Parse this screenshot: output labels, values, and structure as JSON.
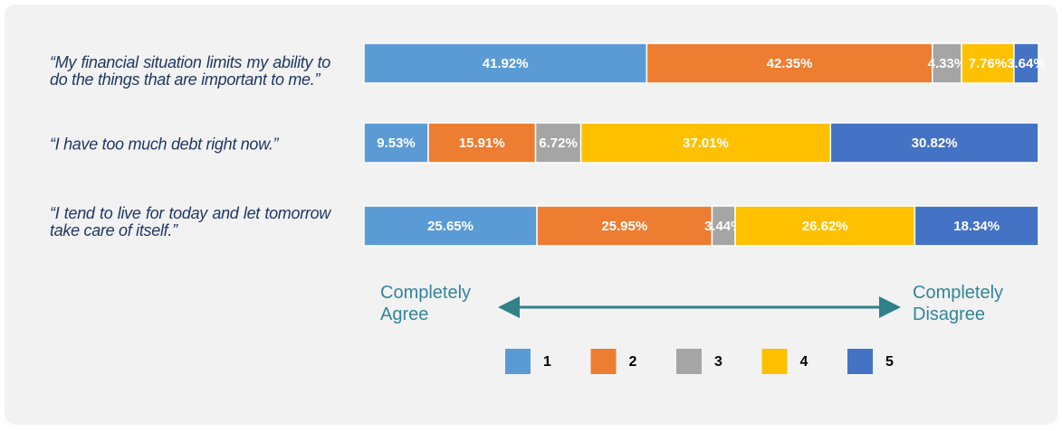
{
  "chart_data": {
    "type": "stacked-bar-horizontal",
    "categories": [
      "“My financial situation limits my ability to do the things that are important to me.”",
      "“I have too much debt right now.”",
      "“I tend to live for today and let tomorrow take care of itself.”"
    ],
    "series": [
      {
        "name": "1",
        "color": "#5b9bd5",
        "values": [
          41.92,
          9.53,
          25.65
        ],
        "value_labels": [
          "41.92%",
          "9.53%",
          "25.65%"
        ]
      },
      {
        "name": "2",
        "color": "#ed7d31",
        "values": [
          42.35,
          15.91,
          25.95
        ],
        "value_labels": [
          "42.35%",
          "15.91%",
          "25.95%"
        ]
      },
      {
        "name": "3",
        "color": "#a5a5a5",
        "values": [
          4.33,
          6.72,
          3.44
        ],
        "value_labels": [
          "4.33%",
          "6.72%",
          "3.44%"
        ]
      },
      {
        "name": "4",
        "color": "#ffc000",
        "values": [
          7.76,
          37.01,
          26.62
        ],
        "value_labels": [
          "7.76%",
          "37.01%",
          "26.62%"
        ]
      },
      {
        "name": "5",
        "color": "#4472c4",
        "values": [
          3.64,
          30.82,
          18.34
        ],
        "value_labels": [
          "3.64%",
          "30.82%",
          "18.34%"
        ]
      }
    ],
    "xlim": [
      0,
      100
    ],
    "annotations": [
      "Completely Agree",
      "Completely Disagree"
    ]
  }
}
